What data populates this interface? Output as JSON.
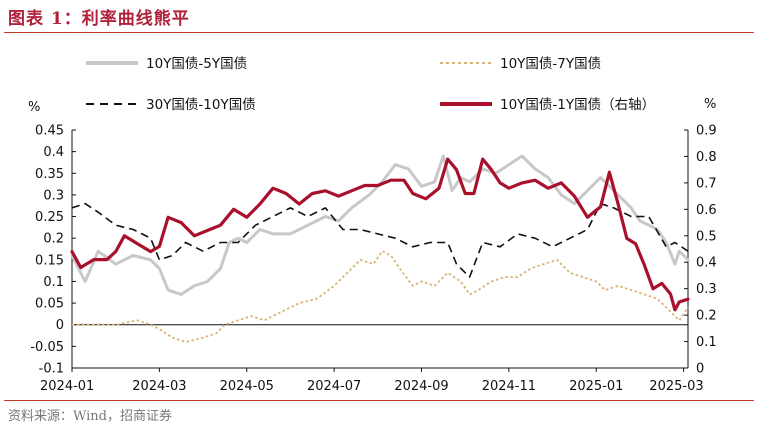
{
  "title": "图表 1：利率曲线熊平",
  "source": "资料来源：Wind，招商证券",
  "chart_data": {
    "type": "line",
    "left_axis": {
      "unit": "%",
      "ylim": [
        -0.1,
        0.45
      ],
      "ticks": [
        0.45,
        0.4,
        0.35,
        0.3,
        0.25,
        0.2,
        0.15,
        0.1,
        0.05,
        0,
        -0.05,
        -0.1
      ],
      "tick_labels": [
        "0.45",
        "0.4",
        "0.35",
        "0.3",
        "0.25",
        "0.2",
        "0.15",
        "0.1",
        "0.05",
        "0",
        "-0.05",
        "-0.1"
      ]
    },
    "right_axis": {
      "unit": "%",
      "ylim": [
        0,
        0.9
      ],
      "ticks": [
        0.9,
        0.8,
        0.7,
        0.6,
        0.5,
        0.4,
        0.3,
        0.2,
        0.1,
        0
      ],
      "tick_labels": [
        "0.9",
        "0.8",
        "0.7",
        "0.6",
        "0.5",
        "0.4",
        "0.3",
        "0.2",
        "0.1",
        "0"
      ]
    },
    "x_axis": {
      "min": 0,
      "max": 14.1,
      "ticks": [
        0,
        2,
        4,
        6,
        8,
        10,
        12,
        14
      ],
      "tick_labels": [
        "2024-01",
        "2024-03",
        "2024-05",
        "2024-07",
        "2024-09",
        "2024-11",
        "2025-01",
        "2025-03"
      ]
    },
    "series": [
      {
        "name": "10Y国债-5Y国债",
        "axis": "left",
        "style": "solid",
        "color": "#c8c8c8",
        "points": [
          [
            0,
            0.16
          ],
          [
            0.3,
            0.1
          ],
          [
            0.6,
            0.17
          ],
          [
            1.0,
            0.14
          ],
          [
            1.4,
            0.16
          ],
          [
            1.8,
            0.15
          ],
          [
            2.0,
            0.13
          ],
          [
            2.2,
            0.08
          ],
          [
            2.5,
            0.07
          ],
          [
            2.8,
            0.09
          ],
          [
            3.1,
            0.1
          ],
          [
            3.4,
            0.13
          ],
          [
            3.6,
            0.19
          ],
          [
            3.8,
            0.2
          ],
          [
            4.0,
            0.19
          ],
          [
            4.3,
            0.22
          ],
          [
            4.6,
            0.21
          ],
          [
            5.0,
            0.21
          ],
          [
            5.4,
            0.23
          ],
          [
            5.8,
            0.25
          ],
          [
            6.1,
            0.24
          ],
          [
            6.4,
            0.27
          ],
          [
            6.8,
            0.3
          ],
          [
            7.1,
            0.33
          ],
          [
            7.4,
            0.37
          ],
          [
            7.7,
            0.36
          ],
          [
            8.0,
            0.32
          ],
          [
            8.3,
            0.33
          ],
          [
            8.5,
            0.39
          ],
          [
            8.7,
            0.31
          ],
          [
            8.9,
            0.34
          ],
          [
            9.1,
            0.33
          ],
          [
            9.4,
            0.36
          ],
          [
            9.7,
            0.35
          ],
          [
            10.0,
            0.37
          ],
          [
            10.3,
            0.39
          ],
          [
            10.6,
            0.36
          ],
          [
            10.9,
            0.34
          ],
          [
            11.2,
            0.3
          ],
          [
            11.5,
            0.28
          ],
          [
            11.8,
            0.31
          ],
          [
            12.1,
            0.34
          ],
          [
            12.3,
            0.32
          ],
          [
            12.5,
            0.3
          ],
          [
            12.8,
            0.27
          ],
          [
            13.0,
            0.24
          ],
          [
            13.2,
            0.23
          ],
          [
            13.4,
            0.22
          ],
          [
            13.6,
            0.19
          ],
          [
            13.8,
            0.14
          ],
          [
            13.9,
            0.17
          ],
          [
            14.1,
            0.15
          ]
        ]
      },
      {
        "name": "10Y国债-7Y国债",
        "axis": "left",
        "style": "dotted",
        "color": "#d9b376",
        "points": [
          [
            0,
            0
          ],
          [
            0.5,
            0
          ],
          [
            1.0,
            0
          ],
          [
            1.5,
            0.01
          ],
          [
            1.8,
            0
          ],
          [
            2.0,
            -0.01
          ],
          [
            2.3,
            -0.03
          ],
          [
            2.6,
            -0.04
          ],
          [
            3.0,
            -0.03
          ],
          [
            3.3,
            -0.02
          ],
          [
            3.5,
            0
          ],
          [
            3.8,
            0.01
          ],
          [
            4.1,
            0.02
          ],
          [
            4.4,
            0.01
          ],
          [
            4.8,
            0.03
          ],
          [
            5.2,
            0.05
          ],
          [
            5.6,
            0.06
          ],
          [
            6.0,
            0.09
          ],
          [
            6.3,
            0.12
          ],
          [
            6.6,
            0.15
          ],
          [
            6.9,
            0.14
          ],
          [
            7.1,
            0.17
          ],
          [
            7.3,
            0.16
          ],
          [
            7.5,
            0.13
          ],
          [
            7.8,
            0.09
          ],
          [
            8.0,
            0.1
          ],
          [
            8.3,
            0.09
          ],
          [
            8.6,
            0.12
          ],
          [
            8.9,
            0.1
          ],
          [
            9.1,
            0.07
          ],
          [
            9.3,
            0.08
          ],
          [
            9.6,
            0.1
          ],
          [
            9.9,
            0.11
          ],
          [
            10.2,
            0.11
          ],
          [
            10.5,
            0.13
          ],
          [
            10.8,
            0.14
          ],
          [
            11.1,
            0.15
          ],
          [
            11.4,
            0.12
          ],
          [
            11.7,
            0.11
          ],
          [
            12.0,
            0.1
          ],
          [
            12.2,
            0.08
          ],
          [
            12.5,
            0.09
          ],
          [
            12.8,
            0.08
          ],
          [
            13.1,
            0.07
          ],
          [
            13.4,
            0.06
          ],
          [
            13.7,
            0.03
          ],
          [
            13.9,
            0.01
          ],
          [
            14.1,
            0.04
          ]
        ]
      },
      {
        "name": "30Y国债-10Y国债",
        "axis": "left",
        "style": "dashed",
        "color": "#111111",
        "points": [
          [
            0,
            0.27
          ],
          [
            0.3,
            0.28
          ],
          [
            0.6,
            0.26
          ],
          [
            1.0,
            0.23
          ],
          [
            1.4,
            0.22
          ],
          [
            1.8,
            0.2
          ],
          [
            2.0,
            0.15
          ],
          [
            2.3,
            0.16
          ],
          [
            2.6,
            0.19
          ],
          [
            3.0,
            0.17
          ],
          [
            3.4,
            0.19
          ],
          [
            3.8,
            0.19
          ],
          [
            4.2,
            0.23
          ],
          [
            4.6,
            0.25
          ],
          [
            5.0,
            0.27
          ],
          [
            5.4,
            0.25
          ],
          [
            5.8,
            0.27
          ],
          [
            6.2,
            0.22
          ],
          [
            6.6,
            0.22
          ],
          [
            7.0,
            0.21
          ],
          [
            7.4,
            0.2
          ],
          [
            7.8,
            0.18
          ],
          [
            8.2,
            0.19
          ],
          [
            8.6,
            0.19
          ],
          [
            8.8,
            0.14
          ],
          [
            9.1,
            0.11
          ],
          [
            9.4,
            0.19
          ],
          [
            9.8,
            0.18
          ],
          [
            10.2,
            0.21
          ],
          [
            10.6,
            0.2
          ],
          [
            11.0,
            0.18
          ],
          [
            11.4,
            0.2
          ],
          [
            11.8,
            0.22
          ],
          [
            12.1,
            0.28
          ],
          [
            12.4,
            0.27
          ],
          [
            12.8,
            0.25
          ],
          [
            13.2,
            0.25
          ],
          [
            13.6,
            0.18
          ],
          [
            13.8,
            0.19
          ],
          [
            14.1,
            0.17
          ]
        ]
      },
      {
        "name": "10Y国债-1Y国债（右轴）",
        "axis": "right",
        "style": "solid",
        "color": "#a8102b",
        "points": [
          [
            0,
            0.44
          ],
          [
            0.2,
            0.38
          ],
          [
            0.5,
            0.41
          ],
          [
            0.8,
            0.41
          ],
          [
            1.0,
            0.44
          ],
          [
            1.2,
            0.5
          ],
          [
            1.5,
            0.47
          ],
          [
            1.8,
            0.44
          ],
          [
            2.0,
            0.46
          ],
          [
            2.2,
            0.57
          ],
          [
            2.5,
            0.55
          ],
          [
            2.8,
            0.5
          ],
          [
            3.1,
            0.52
          ],
          [
            3.4,
            0.54
          ],
          [
            3.7,
            0.6
          ],
          [
            4.0,
            0.57
          ],
          [
            4.3,
            0.62
          ],
          [
            4.6,
            0.68
          ],
          [
            4.9,
            0.66
          ],
          [
            5.2,
            0.62
          ],
          [
            5.5,
            0.66
          ],
          [
            5.8,
            0.67
          ],
          [
            6.1,
            0.65
          ],
          [
            6.4,
            0.67
          ],
          [
            6.7,
            0.69
          ],
          [
            7.0,
            0.69
          ],
          [
            7.3,
            0.71
          ],
          [
            7.6,
            0.71
          ],
          [
            7.8,
            0.66
          ],
          [
            8.1,
            0.64
          ],
          [
            8.4,
            0.68
          ],
          [
            8.6,
            0.79
          ],
          [
            8.8,
            0.75
          ],
          [
            9.0,
            0.66
          ],
          [
            9.2,
            0.66
          ],
          [
            9.4,
            0.79
          ],
          [
            9.6,
            0.75
          ],
          [
            9.8,
            0.7
          ],
          [
            10.0,
            0.68
          ],
          [
            10.3,
            0.7
          ],
          [
            10.6,
            0.71
          ],
          [
            10.9,
            0.68
          ],
          [
            11.2,
            0.7
          ],
          [
            11.5,
            0.65
          ],
          [
            11.8,
            0.57
          ],
          [
            12.1,
            0.61
          ],
          [
            12.3,
            0.74
          ],
          [
            12.5,
            0.62
          ],
          [
            12.7,
            0.49
          ],
          [
            12.9,
            0.47
          ],
          [
            13.1,
            0.39
          ],
          [
            13.3,
            0.3
          ],
          [
            13.5,
            0.32
          ],
          [
            13.7,
            0.28
          ],
          [
            13.8,
            0.22
          ],
          [
            13.9,
            0.25
          ],
          [
            14.1,
            0.26
          ]
        ]
      }
    ]
  }
}
